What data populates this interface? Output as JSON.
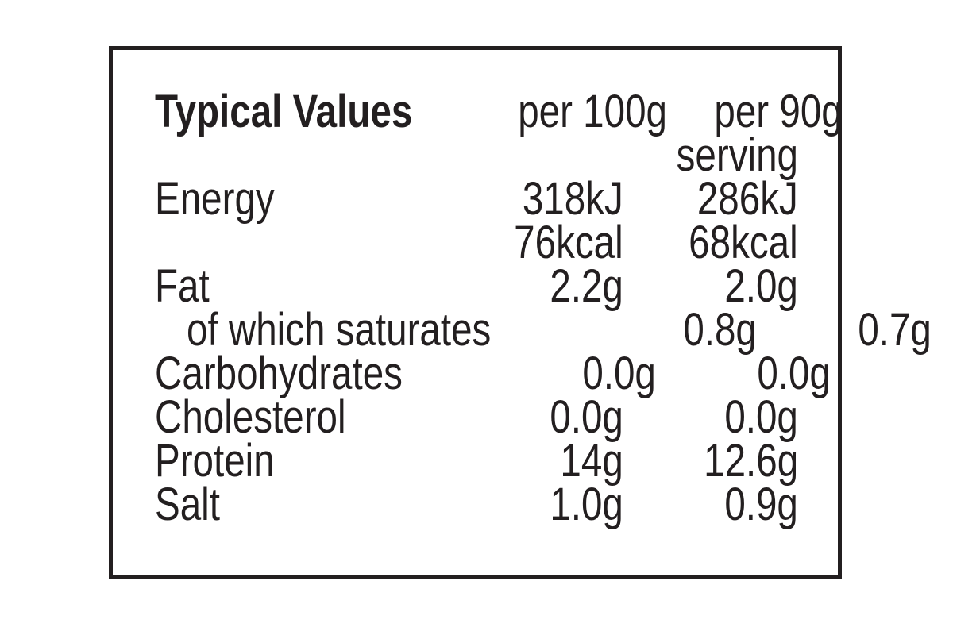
{
  "nutrition_label": {
    "header": {
      "title": "Typical Values",
      "col_per_100g": "per 100g",
      "col_per_serving_line1": "per 90g",
      "col_per_serving_line2": "serving"
    },
    "rows": [
      {
        "name": "Energy",
        "per_100g": "318kJ",
        "per_90g": "286kJ"
      },
      {
        "name": "",
        "per_100g": "76kcal",
        "per_90g": "68kcal"
      },
      {
        "name": "Fat",
        "per_100g": "2.2g",
        "per_90g": "2.0g"
      },
      {
        "name": "of which saturates",
        "per_100g": "0.8g",
        "per_90g": "0.7g"
      },
      {
        "name": "Carbohydrates",
        "per_100g": "0.0g",
        "per_90g": "0.0g"
      },
      {
        "name": "Cholesterol",
        "per_100g": "0.0g",
        "per_90g": "0.0g"
      },
      {
        "name": "Protein",
        "per_100g": "14g",
        "per_90g": "12.6g"
      },
      {
        "name": "Salt",
        "per_100g": "1.0g",
        "per_90g": "0.9g"
      }
    ],
    "colors": {
      "text": "#231f20",
      "border": "#231f20",
      "background": "#ffffff"
    }
  }
}
